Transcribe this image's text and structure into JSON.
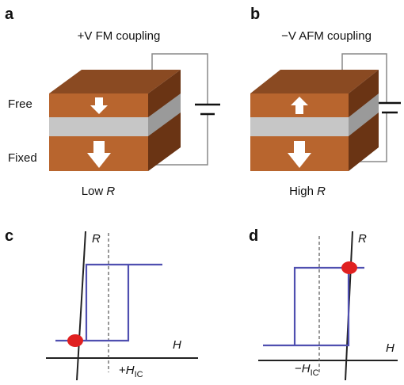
{
  "panels": [
    {
      "label": "a",
      "title": "+V FM coupling",
      "layers": {
        "free": "Free",
        "fixed": "Fixed"
      },
      "caption": {
        "prefix": "Low",
        "var": "R"
      }
    },
    {
      "label": "b",
      "title": "−V AFM coupling",
      "caption": {
        "prefix": "High",
        "var": "R"
      }
    }
  ],
  "plots": [
    {
      "label": "c",
      "y_axis": "R",
      "x_axis": "H",
      "marker": {
        "sign": "+",
        "var": "H",
        "sub": "IC"
      }
    },
    {
      "label": "d",
      "y_axis": "R",
      "x_axis": "H",
      "marker": {
        "sign": "−",
        "var": "H",
        "sub": "IC"
      }
    }
  ]
}
